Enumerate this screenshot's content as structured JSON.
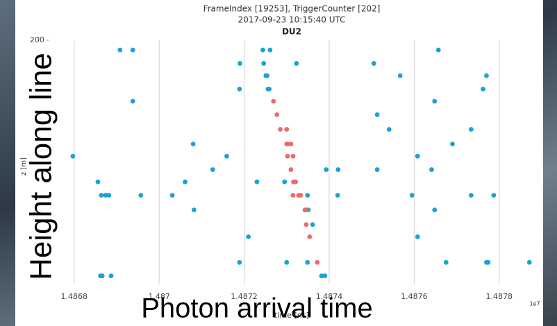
{
  "chart_data": {
    "type": "scatter",
    "title": "FrameIndex [19253], TriggerCounter [202]",
    "subtitle": "2017-09-23 10:15:40 UTC",
    "panel_title": "DU2",
    "xlabel": "time [ns]",
    "ylabel": "z [m]",
    "x_offset_label": "1e7",
    "xlim": [
      1.48674,
      1.4879
    ],
    "xticks": [
      1.4868,
      1.487,
      1.4872,
      1.4874,
      1.4876,
      1.4878
    ],
    "ylim": [
      0,
      200
    ],
    "yticks": [
      200
    ],
    "grid": true,
    "series": [
      {
        "color": "#1aa3d4",
        "x": [
          1.486908,
          1.486938,
          1.487244,
          1.487261,
          1.487657,
          1.48719,
          1.487246,
          1.487323,
          1.487505,
          1.487251,
          1.487254,
          1.487567,
          1.48777,
          1.487189,
          1.487256,
          1.487259,
          1.487762,
          1.486938,
          1.487648,
          1.487513,
          1.487541,
          1.487734,
          1.48708,
          1.48769,
          1.486797,
          1.487159,
          1.487608,
          1.487126,
          1.487393,
          1.487421,
          1.487513,
          1.487641,
          1.486856,
          1.487061,
          1.48723,
          1.487295,
          1.486864,
          1.486874,
          1.486882,
          1.486957,
          1.487031,
          1.487349,
          1.48742,
          1.487595,
          1.487734,
          1.487787,
          1.487082,
          1.487351,
          1.487648,
          1.487361,
          1.48721,
          1.487608,
          1.487189,
          1.4873,
          1.487349,
          1.487675,
          1.48777,
          1.487774,
          1.487871,
          1.486862,
          1.486866,
          1.486887,
          1.487382,
          1.48739
        ],
        "y": [
          192,
          192,
          192,
          192,
          192,
          181,
          181,
          181,
          181,
          171,
          171,
          171,
          171,
          160,
          160,
          160,
          160,
          150,
          150,
          139,
          127,
          127,
          115,
          115,
          105,
          105,
          105,
          94,
          94,
          94,
          94,
          94,
          84,
          84,
          84,
          84,
          73,
          73,
          73,
          73,
          73,
          73,
          73,
          73,
          73,
          73,
          61,
          61,
          61,
          49,
          39,
          39,
          18,
          18,
          18,
          18,
          18,
          18,
          18,
          7,
          7,
          7,
          7,
          7
        ]
      },
      {
        "color": "#ee6a6a",
        "x": [
          1.487269,
          1.487277,
          1.487285,
          1.4873,
          1.4873,
          1.487302,
          1.48731,
          1.487302,
          1.487315,
          1.48731,
          1.487316,
          1.487321,
          1.487315,
          1.487328,
          1.487333,
          1.487343,
          1.487346,
          1.487346,
          1.487354,
          1.487372
        ],
        "y": [
          150,
          139,
          127,
          127,
          115,
          115,
          115,
          105,
          105,
          94,
          84,
          84,
          73,
          73,
          73,
          61,
          61,
          49,
          39,
          18
        ]
      }
    ]
  },
  "overlay": {
    "left_caption": "Height along line",
    "bottom_caption": "Photon arrival time"
  }
}
